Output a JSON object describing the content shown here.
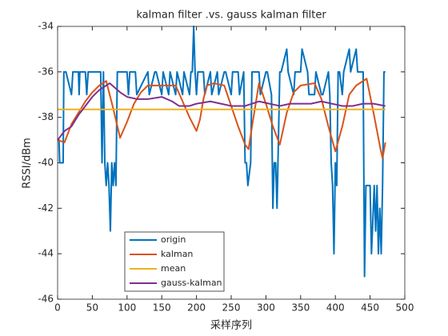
{
  "chart_data": {
    "type": "line",
    "title": "kalman filter .vs. gauss kalman filter",
    "ylabel": "RSSI/dBm",
    "xlabel": "采样序列",
    "xlim": [
      0,
      500
    ],
    "xticks": [
      0,
      50,
      100,
      150,
      200,
      250,
      300,
      350,
      400,
      450,
      500
    ],
    "ylim": [
      -46,
      -34
    ],
    "yticks": [
      -46,
      -44,
      -42,
      -40,
      -38,
      -36,
      -34
    ],
    "legend_location": "lower left",
    "series": [
      {
        "name": "origin",
        "color": "#0072BD",
        "x": [
          0,
          2,
          3,
          8,
          9,
          10,
          12,
          20,
          22,
          30,
          31,
          32,
          40,
          42,
          44,
          50,
          52,
          62,
          64,
          66,
          68,
          70,
          72,
          74,
          76,
          78,
          80,
          82,
          84,
          86,
          88,
          90,
          100,
          102,
          104,
          112,
          114,
          130,
          132,
          140,
          142,
          150,
          152,
          160,
          162,
          170,
          172,
          180,
          182,
          190,
          192,
          194,
          196,
          198,
          200,
          202,
          210,
          212,
          220,
          222,
          230,
          232,
          240,
          242,
          250,
          252,
          260,
          262,
          268,
          270,
          272,
          274,
          278,
          280,
          282,
          290,
          292,
          300,
          302,
          308,
          310,
          312,
          314,
          316,
          320,
          322,
          330,
          332,
          340,
          342,
          350,
          352,
          360,
          362,
          370,
          372,
          380,
          382,
          390,
          392,
          394,
          396,
          398,
          400,
          402,
          404,
          406,
          410,
          412,
          420,
          422,
          430,
          432,
          440,
          442,
          444,
          446,
          450,
          452,
          456,
          458,
          460,
          462,
          464,
          466,
          468,
          470,
          472
        ],
        "values": [
          -39,
          -39,
          -40,
          -40,
          -36,
          -36,
          -36,
          -37,
          -36,
          -36,
          -37,
          -36,
          -36,
          -37,
          -36,
          -36,
          -36,
          -36,
          -40,
          -36,
          -40,
          -41,
          -40,
          -41,
          -43,
          -40,
          -41,
          -40,
          -41,
          -36,
          -36,
          -36,
          -36,
          -37,
          -36,
          -36,
          -37,
          -36,
          -37,
          -36,
          -36,
          -37,
          -36,
          -37,
          -36,
          -37,
          -36,
          -37,
          -36,
          -37,
          -36,
          -36,
          -34,
          -36,
          -37,
          -36,
          -36,
          -37,
          -36,
          -37,
          -36,
          -37,
          -36,
          -36,
          -37,
          -36,
          -36,
          -37,
          -36,
          -40,
          -40,
          -41,
          -40,
          -36,
          -36,
          -36,
          -37,
          -36,
          -36,
          -37,
          -42,
          -40,
          -40,
          -42,
          -36,
          -36,
          -35,
          -36,
          -37,
          -36,
          -36,
          -35,
          -36,
          -37,
          -37,
          -36,
          -37,
          -37,
          -36,
          -37,
          -40,
          -41,
          -44,
          -40,
          -41,
          -36,
          -36,
          -37,
          -36,
          -35,
          -36,
          -35,
          -36,
          -36,
          -45,
          -41,
          -41,
          -41,
          -44,
          -41,
          -43,
          -41,
          -44,
          -42,
          -44,
          -41,
          -36,
          -36
        ]
      },
      {
        "name": "kalman",
        "color": "#D95319",
        "x": [
          0,
          10,
          20,
          30,
          40,
          50,
          60,
          70,
          80,
          90,
          100,
          110,
          120,
          130,
          150,
          170,
          180,
          190,
          200,
          205,
          210,
          215,
          225,
          240,
          250,
          260,
          270,
          275,
          280,
          290,
          300,
          310,
          320,
          330,
          340,
          350,
          370,
          380,
          390,
          400,
          410,
          420,
          430,
          445,
          455,
          465,
          468,
          472
        ],
        "values": [
          -39,
          -39.1,
          -38.3,
          -37.8,
          -37.3,
          -36.9,
          -36.6,
          -36.4,
          -37.6,
          -38.9,
          -38.2,
          -37.4,
          -36.9,
          -36.6,
          -36.6,
          -36.6,
          -37.3,
          -38,
          -38.6,
          -38.1,
          -37.2,
          -36.6,
          -36.5,
          -36.6,
          -37.5,
          -38.4,
          -39.2,
          -39.4,
          -38.4,
          -36.5,
          -37.4,
          -38.4,
          -39.2,
          -37.8,
          -36.9,
          -36.6,
          -36.5,
          -37.2,
          -38.4,
          -39.5,
          -38.4,
          -37,
          -36.6,
          -36.3,
          -37.8,
          -39.4,
          -39.8,
          -39.1
        ]
      },
      {
        "name": "mean",
        "color": "#EDB120",
        "x": [
          0,
          472
        ],
        "values": [
          -37.65,
          -37.65
        ]
      },
      {
        "name": "gauss-kalman",
        "color": "#7E2F8E",
        "x": [
          0,
          10,
          20,
          30,
          40,
          50,
          60,
          75,
          90,
          100,
          115,
          130,
          150,
          165,
          175,
          190,
          200,
          220,
          235,
          250,
          270,
          290,
          305,
          320,
          335,
          350,
          365,
          380,
          395,
          410,
          425,
          440,
          455,
          472
        ],
        "values": [
          -39,
          -38.6,
          -38.4,
          -37.9,
          -37.5,
          -37.1,
          -36.8,
          -36.5,
          -36.9,
          -37.1,
          -37.2,
          -37.2,
          -37.1,
          -37.3,
          -37.5,
          -37.5,
          -37.4,
          -37.3,
          -37.4,
          -37.5,
          -37.5,
          -37.3,
          -37.4,
          -37.5,
          -37.4,
          -37.4,
          -37.4,
          -37.3,
          -37.4,
          -37.5,
          -37.5,
          -37.4,
          -37.4,
          -37.5
        ]
      }
    ]
  }
}
